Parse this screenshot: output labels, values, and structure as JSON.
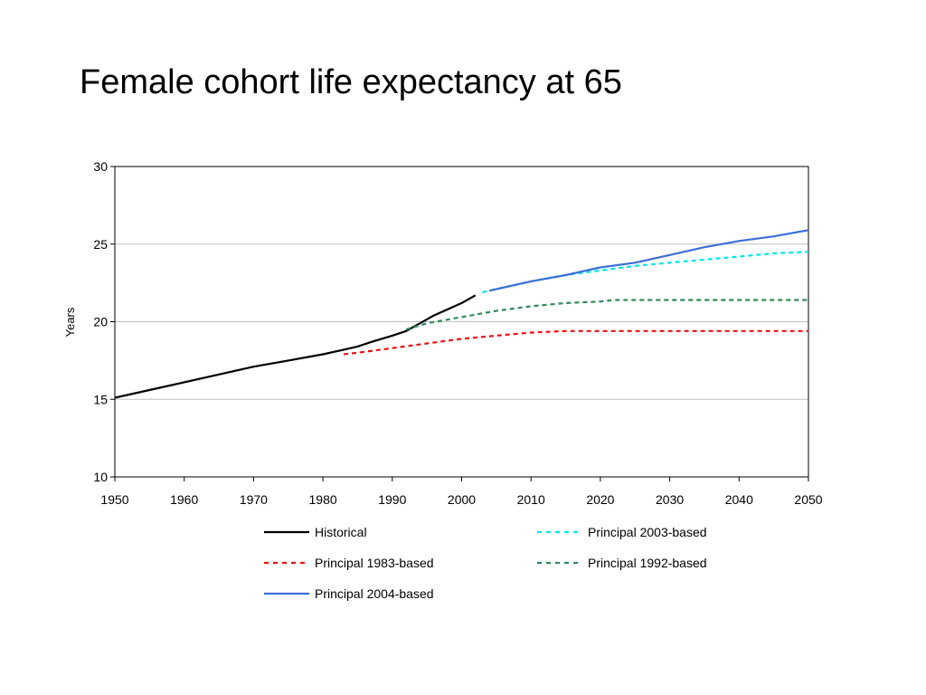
{
  "slide": {
    "title": "Female cohort life expectancy at 65"
  },
  "chart_data": {
    "type": "line",
    "title": "",
    "xlabel": "",
    "ylabel": "Years",
    "xlim": [
      1950,
      2050
    ],
    "ylim": [
      10,
      30
    ],
    "x_ticks": [
      1950,
      1960,
      1970,
      1980,
      1990,
      2000,
      2010,
      2020,
      2030,
      2040,
      2050
    ],
    "y_ticks": [
      10,
      15,
      20,
      25,
      30
    ],
    "grid": {
      "horizontal": true,
      "vertical": false
    },
    "legend_position": "bottom",
    "series": [
      {
        "name": "Historical",
        "color": "#000000",
        "dash": "solid",
        "x": [
          1950,
          1955,
          1960,
          1965,
          1970,
          1975,
          1980,
          1983,
          1985,
          1987,
          1990,
          1992,
          1994,
          1996,
          1998,
          2000,
          2002
        ],
        "y": [
          15.1,
          15.6,
          16.1,
          16.6,
          17.1,
          17.5,
          17.9,
          18.2,
          18.4,
          18.7,
          19.1,
          19.4,
          19.9,
          20.4,
          20.8,
          21.2,
          21.7
        ]
      },
      {
        "name": "Principal 2003-based",
        "color": "#00e5ee",
        "dash": "dashed",
        "x": [
          2003,
          2005,
          2010,
          2015,
          2020,
          2025,
          2030,
          2035,
          2040,
          2045,
          2050
        ],
        "y": [
          21.9,
          22.1,
          22.6,
          23.0,
          23.3,
          23.6,
          23.8,
          24.0,
          24.2,
          24.4,
          24.5
        ]
      },
      {
        "name": "Principal 1983-based",
        "color": "#ee1111",
        "dash": "dashed",
        "x": [
          1983,
          1985,
          1990,
          1995,
          2000,
          2005,
          2010,
          2015,
          2020,
          2030,
          2040,
          2050
        ],
        "y": [
          17.9,
          18.0,
          18.3,
          18.6,
          18.9,
          19.1,
          19.3,
          19.4,
          19.4,
          19.4,
          19.4,
          19.4
        ]
      },
      {
        "name": "Principal 1992-based",
        "color": "#2e8b57",
        "dash": "dashed",
        "x": [
          1992,
          1995,
          2000,
          2005,
          2010,
          2015,
          2020,
          2022,
          2030,
          2040,
          2050
        ],
        "y": [
          19.5,
          19.9,
          20.3,
          20.7,
          21.0,
          21.2,
          21.3,
          21.4,
          21.4,
          21.4,
          21.4
        ]
      },
      {
        "name": "Principal 2004-based",
        "color": "#3b6fd8",
        "dash": "solid",
        "x": [
          2004,
          2005,
          2010,
          2015,
          2020,
          2025,
          2030,
          2035,
          2040,
          2045,
          2050
        ],
        "y": [
          22.0,
          22.1,
          22.6,
          23.0,
          23.5,
          23.8,
          24.3,
          24.8,
          25.2,
          25.5,
          25.9
        ]
      }
    ]
  }
}
